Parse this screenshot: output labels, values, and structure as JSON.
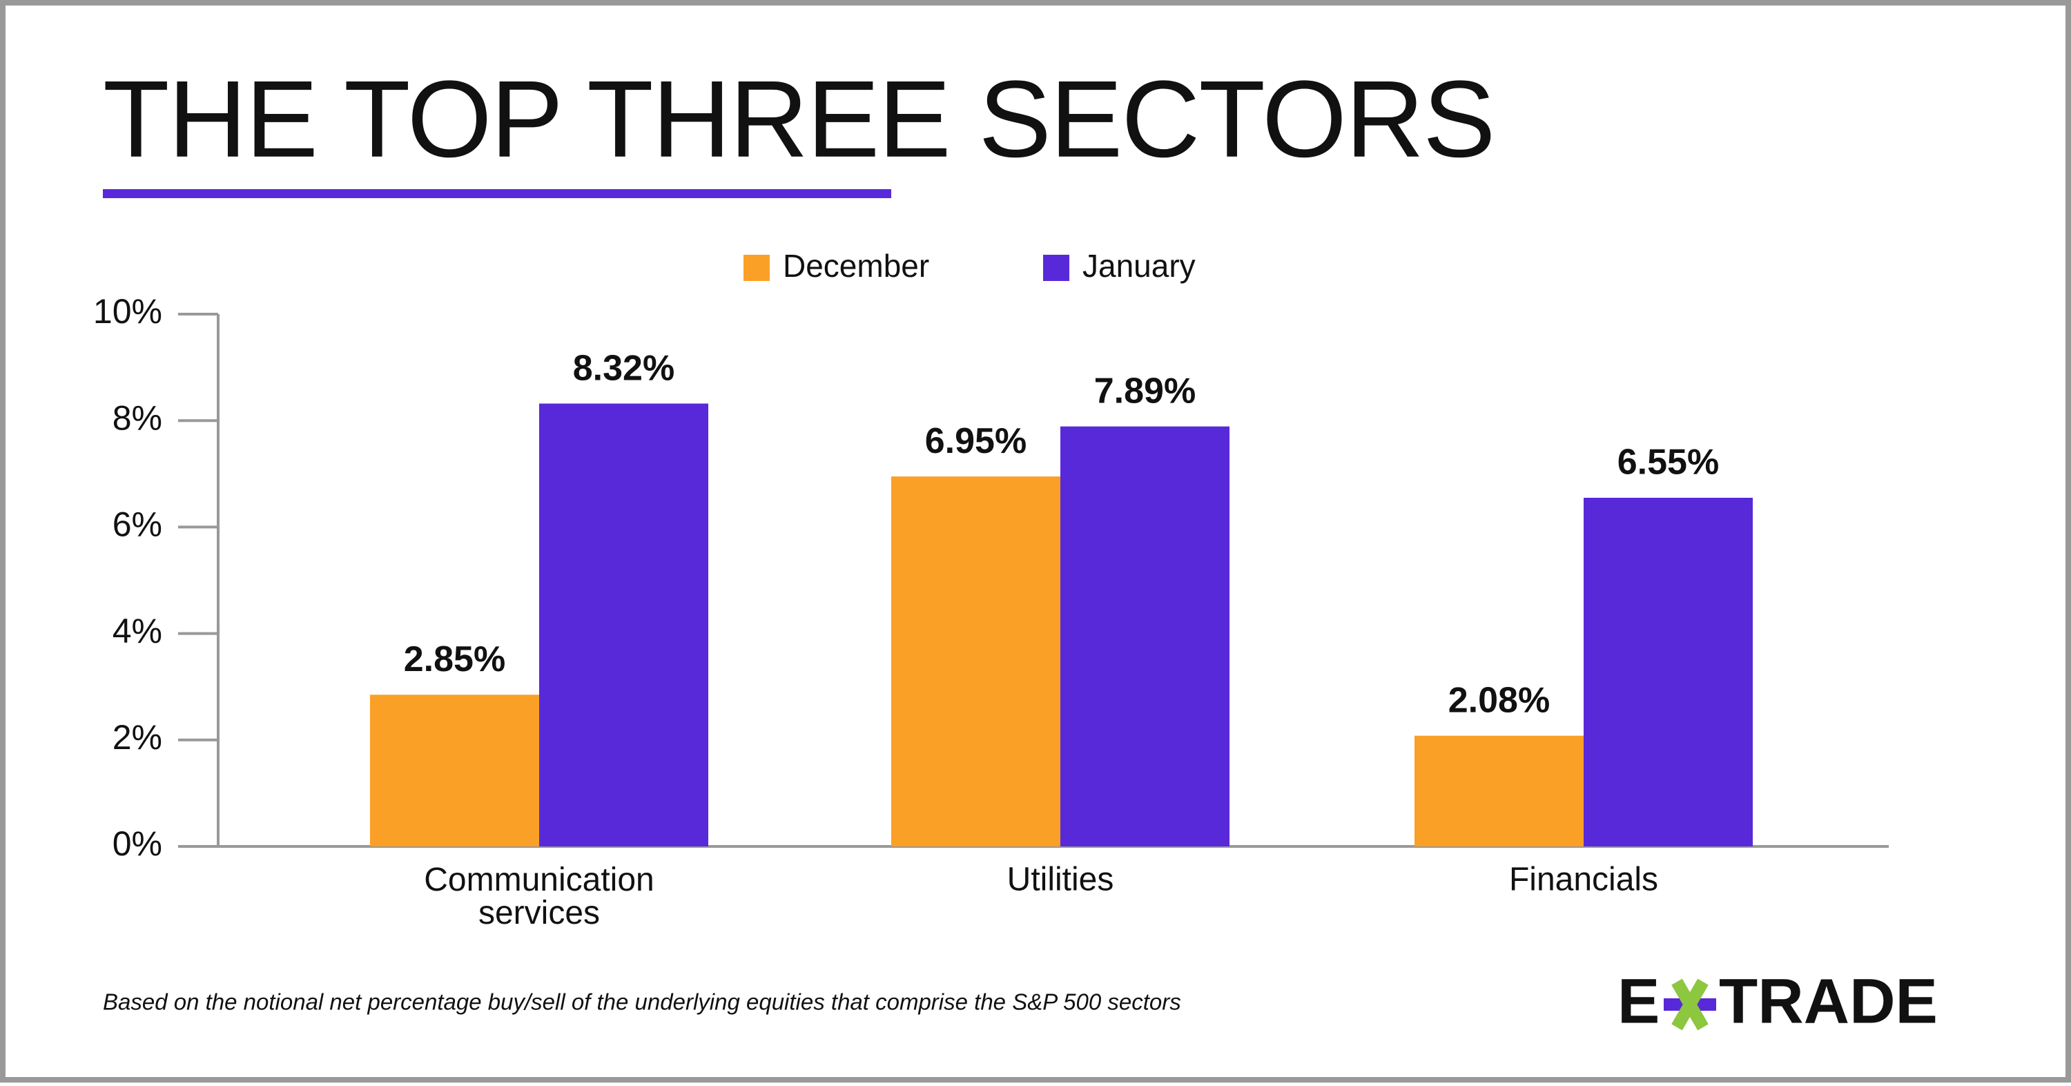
{
  "chart_data": {
    "type": "bar",
    "title": "THE TOP THREE SECTORS",
    "categories": [
      "Communication services",
      "Utilities",
      "Financials"
    ],
    "series": [
      {
        "name": "December",
        "color": "#fba026",
        "values": [
          2.85,
          6.95,
          2.08
        ],
        "value_labels": [
          "2.85%",
          "6.95%",
          "2.08%"
        ]
      },
      {
        "name": "January",
        "color": "#5829d8",
        "values": [
          8.32,
          7.89,
          6.55
        ],
        "value_labels": [
          "8.32%",
          "7.89%",
          "6.55%"
        ]
      }
    ],
    "ylim": [
      0,
      10
    ],
    "yticks": [
      {
        "value": 0,
        "label": "0%"
      },
      {
        "value": 2,
        "label": "2%"
      },
      {
        "value": 4,
        "label": "4%"
      },
      {
        "value": 6,
        "label": "6%"
      },
      {
        "value": 8,
        "label": "8%"
      },
      {
        "value": 10,
        "label": "10%"
      }
    ],
    "legend": "top",
    "footnote": "Based on the notional net percentage buy/sell of the underlying equities that comprise the S&P 500 sectors",
    "logo": {
      "left": "E",
      "right": "TRADE"
    }
  }
}
